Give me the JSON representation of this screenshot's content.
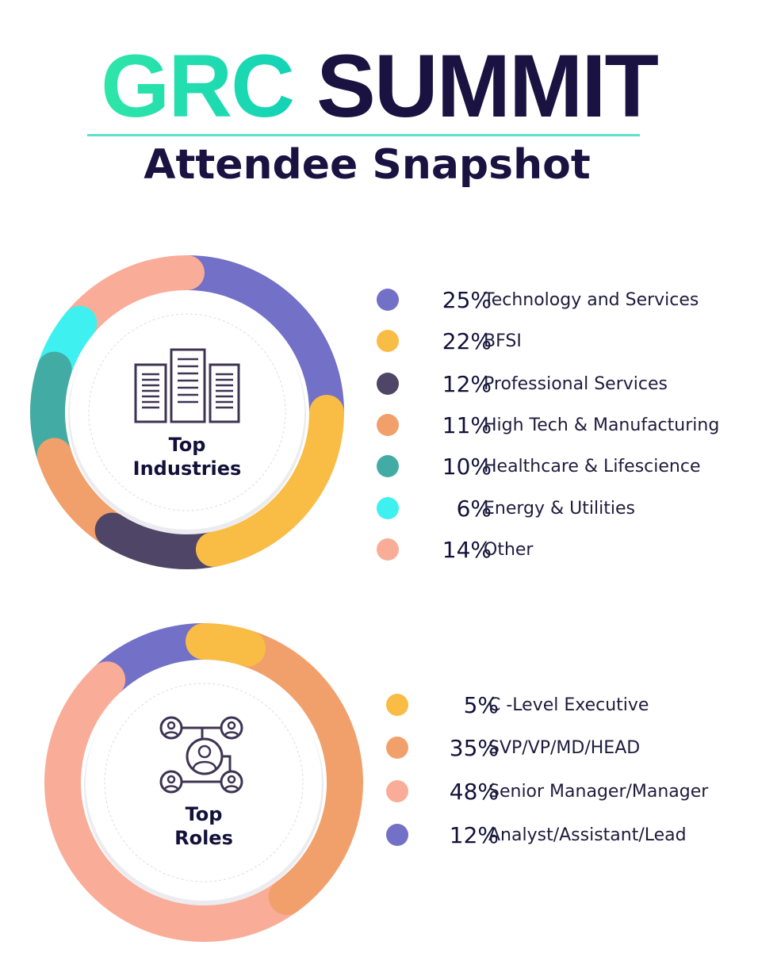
{
  "header": {
    "brand_part1": "GRC",
    "brand_part2": "SUMMIT",
    "subtitle": "Attendee Snapshot"
  },
  "chart_data": [
    {
      "type": "pie",
      "title": "Top Industries",
      "center_label": [
        "Top",
        "Industries"
      ],
      "icon": "buildings-icon",
      "categories": [
        "Technology and Services",
        "BFSI",
        "Professional Services",
        "High Tech & Manufacturing",
        "Healthcare & Lifescience",
        "Energy & Utilities",
        "Other"
      ],
      "values": [
        25,
        22,
        12,
        11,
        10,
        6,
        14
      ],
      "labels": [
        "25%",
        "22%",
        "12%",
        "11%",
        "10%",
        "6%",
        "14%"
      ],
      "colors": [
        "#7370c8",
        "#f9bc45",
        "#4f4566",
        "#f2a06b",
        "#42aca4",
        "#3ef0f0",
        "#f9ad98"
      ]
    },
    {
      "type": "pie",
      "title": "Top Roles",
      "center_label": [
        "Top",
        "Roles"
      ],
      "icon": "org-network-icon",
      "categories": [
        "C -Level Executive",
        "SVP/VP/MD/HEAD",
        "Senior Manager/Manager",
        "Analyst/Assistant/Lead"
      ],
      "values": [
        5,
        35,
        48,
        12
      ],
      "labels": [
        "5%",
        "35%",
        "48%",
        "12%"
      ],
      "colors": [
        "#f9bc45",
        "#f2a06b",
        "#f9ad98",
        "#7370c8"
      ]
    }
  ]
}
